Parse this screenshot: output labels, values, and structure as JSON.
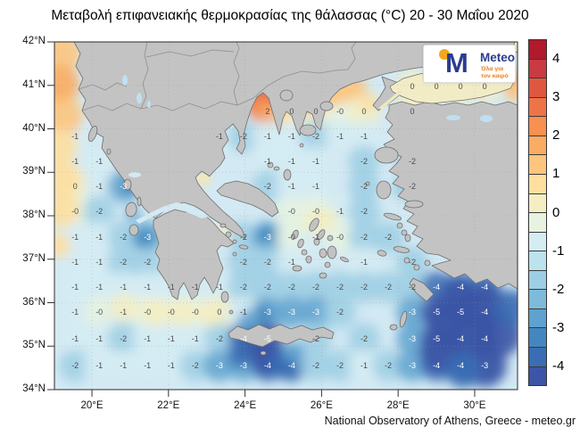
{
  "title": "Μεταβολή επιφανειακής θερμοκρασίας της θάλασσας (°C) 20 - 30 Μαΐου 2020",
  "attribution": "National Observatory of Athens, Greece - meteo.gr",
  "logo": {
    "name": "Meteo",
    "tagline": [
      "Όλα για",
      "τον καιρό"
    ],
    "brand_blue": "#2b3c8f",
    "brand_orange": "#ef7d17",
    "brand_yellow": "#f5a81c"
  },
  "axes": {
    "lat_ticks": [
      {
        "label": "42°N",
        "value": 42
      },
      {
        "label": "41°N",
        "value": 41
      },
      {
        "label": "40°N",
        "value": 40
      },
      {
        "label": "39°N",
        "value": 39
      },
      {
        "label": "38°N",
        "value": 38
      },
      {
        "label": "37°N",
        "value": 37
      },
      {
        "label": "36°N",
        "value": 36
      },
      {
        "label": "35°N",
        "value": 35
      },
      {
        "label": "34°N",
        "value": 34
      }
    ],
    "lon_ticks": [
      {
        "label": "20°E",
        "value": 20
      },
      {
        "label": "22°E",
        "value": 22
      },
      {
        "label": "24°E",
        "value": 24
      },
      {
        "label": "26°E",
        "value": 26
      },
      {
        "label": "28°E",
        "value": 28
      },
      {
        "label": "30°E",
        "value": 30
      }
    ]
  },
  "colorbar": {
    "tick_labels": [
      "4",
      "3",
      "2",
      "1",
      "0",
      "-1",
      "-2",
      "-3",
      "-4"
    ],
    "max": 4.5,
    "min": -4.5,
    "step": 0.5,
    "segment_colors": [
      "#b11a2b",
      "#c93a41",
      "#e0573f",
      "#ee7448",
      "#f79051",
      "#fbac63",
      "#fdc57e",
      "#fedf9e",
      "#f4eec2",
      "#e7f3e0",
      "#d5ecf3",
      "#bce2ee",
      "#9dcfe4",
      "#7ebada",
      "#5fa2cf",
      "#4487be",
      "#3a6db4",
      "#3c55a6"
    ]
  },
  "map_colors": {
    "land": "#c3c3c3",
    "coast": "#6e6e6e",
    "border": "#8f8f8f",
    "sea_base": "#d3e9f3",
    "lake": "#bfe0f0",
    "marmara": "#f2ecc6",
    "label_dark": "#4d4d4d",
    "label_light": "#ffffff"
  },
  "chart_data": {
    "type": "heatmap",
    "title": "Μεταβολή επιφανειακής θερμοκρασίας της θάλασσας (°C) 20 - 30 Μαΐου 2020",
    "units": "°C",
    "lon_range": [
      19.02,
      31.12
    ],
    "lat_range": [
      34,
      42
    ],
    "grid": {
      "lons": [
        19.56,
        20.19,
        20.82,
        21.45,
        22.07,
        22.7,
        23.33,
        23.96,
        24.59,
        25.22,
        25.85,
        26.48,
        27.11,
        27.74,
        28.37,
        29.0,
        29.63,
        30.26
      ],
      "lats": [
        40.97,
        40.4,
        39.83,
        39.25,
        38.68,
        38.1,
        37.51,
        36.93,
        36.36,
        35.78,
        35.17,
        34.55
      ],
      "values": [
        [
          null,
          null,
          null,
          null,
          null,
          null,
          null,
          null,
          null,
          null,
          null,
          null,
          null,
          null,
          "0",
          "0",
          "0",
          "0"
        ],
        [
          null,
          null,
          null,
          null,
          null,
          null,
          null,
          null,
          "2",
          "0",
          "0",
          "-0",
          "0",
          null,
          "0",
          null,
          null,
          null
        ],
        [
          "-1",
          null,
          null,
          null,
          null,
          null,
          "-1",
          "-2",
          "-1",
          "-1",
          "-2",
          "-1",
          "-1",
          null,
          null,
          null,
          null,
          null
        ],
        [
          "-1",
          "-1",
          null,
          null,
          null,
          null,
          null,
          null,
          "-1",
          "-1",
          "-1",
          null,
          "-2",
          null,
          "-2",
          null,
          null,
          null
        ],
        [
          "0",
          "-1",
          "-3",
          null,
          null,
          null,
          null,
          null,
          "-2",
          "-1",
          "-1",
          null,
          "-2",
          null,
          "-2",
          null,
          null,
          null
        ],
        [
          "-0",
          "-2",
          null,
          null,
          null,
          null,
          null,
          null,
          null,
          "-0",
          "-0",
          "-1",
          "-2",
          null,
          null,
          null,
          null,
          null
        ],
        [
          "-1",
          "-1",
          "-2",
          "-3",
          null,
          null,
          null,
          "-2",
          "-3",
          "-0",
          "-1",
          "-0",
          "-2",
          "-2",
          null,
          null,
          null,
          null
        ],
        [
          "-1",
          "-1",
          "-2",
          "-2",
          null,
          null,
          null,
          "-2",
          "-2",
          "-1",
          null,
          null,
          "-1",
          null,
          "-2",
          null,
          null,
          null
        ],
        [
          "-1",
          "-1",
          "-1",
          "-1",
          "-1",
          "-1",
          "-1",
          "-2",
          "-2",
          "-2",
          "-2",
          "-2",
          "-2",
          "-2",
          "-2",
          "-4",
          "-4",
          "-4"
        ],
        [
          "-1",
          "-0",
          "-1",
          "-0",
          "-0",
          "-0",
          "0",
          "-1",
          "-3",
          "-3",
          "-3",
          "-2",
          null,
          null,
          "-3",
          "-5",
          "-5",
          "-4"
        ],
        [
          "-1",
          "-1",
          "-2",
          "-1",
          "-1",
          "-1",
          "-2",
          "-4",
          "-5",
          null,
          "-2",
          null,
          "-2",
          null,
          "-3",
          "-5",
          "-4",
          "-4"
        ],
        [
          "-2",
          "-1",
          "-1",
          "-1",
          "-1",
          "-2",
          "-3",
          "-3",
          "-4",
          "-4",
          "-2",
          "-2",
          "-1",
          "-2",
          "-3",
          "-4",
          "-4",
          "-3"
        ]
      ]
    },
    "anomaly_patches": [
      [
        19.21,
        41.73,
        1,
        22
      ],
      [
        19.09,
        40.71,
        2,
        10
      ],
      [
        19.16,
        41.02,
        1.5,
        22
      ],
      [
        19.25,
        40.3,
        1,
        22
      ],
      [
        19.16,
        39.58,
        0.6,
        20
      ],
      [
        19.25,
        38.86,
        0.6,
        20
      ],
      [
        19.21,
        38.14,
        0.6,
        20
      ],
      [
        19.11,
        37.32,
        0.5,
        14
      ],
      [
        24.45,
        40.67,
        3,
        16
      ],
      [
        24.8,
        40.75,
        2.5,
        16
      ],
      [
        25.27,
        40.71,
        2,
        14
      ],
      [
        24.29,
        40.54,
        2.5,
        12
      ],
      [
        25.73,
        40.67,
        1.5,
        14
      ],
      [
        26.15,
        40.75,
        1,
        14
      ],
      [
        26.55,
        40.87,
        1.2,
        14
      ],
      [
        26.9,
        40.95,
        1,
        12
      ],
      [
        25.03,
        40.4,
        0.8,
        12
      ],
      [
        24.47,
        40.5,
        1.5,
        8
      ],
      [
        30.98,
        41.08,
        1.5,
        12
      ],
      [
        31.05,
        40.81,
        1,
        10
      ],
      [
        30.91,
        41.9,
        0.5,
        10
      ],
      [
        27.25,
        40.61,
        0.5,
        10
      ],
      [
        28.25,
        39.72,
        0.3,
        12
      ],
      [
        25.85,
        37.84,
        0.4,
        14
      ],
      [
        26.15,
        37.94,
        0.3,
        12
      ],
      [
        23.4,
        37.59,
        0.4,
        10
      ],
      [
        22.89,
        38.86,
        0.5,
        8
      ],
      [
        20.84,
        35.89,
        0.3,
        16
      ],
      [
        21.65,
        35.78,
        0.4,
        16
      ],
      [
        22.35,
        35.78,
        0.4,
        16
      ],
      [
        23.05,
        35.74,
        0.3,
        14
      ],
      [
        29.58,
        36.09,
        -4.2,
        22
      ],
      [
        30.28,
        35.89,
        -4.6,
        26
      ],
      [
        30.63,
        35.27,
        -4.6,
        26
      ],
      [
        29.93,
        35.17,
        -5,
        28
      ],
      [
        29.23,
        35.58,
        -4.6,
        22
      ],
      [
        29.11,
        34.86,
        -4.2,
        24
      ],
      [
        30.28,
        34.55,
        -4.2,
        24
      ],
      [
        30.98,
        35.89,
        -4,
        20
      ],
      [
        29.7,
        34.45,
        -3.8,
        20
      ],
      [
        24.22,
        35.07,
        -4.2,
        16
      ],
      [
        24.57,
        34.76,
        -4.6,
        20
      ],
      [
        24.99,
        34.59,
        -4,
        16
      ],
      [
        23.87,
        34.8,
        -3.6,
        14
      ],
      [
        25.27,
        34.86,
        -3,
        12
      ],
      [
        21.02,
        38.66,
        -3.2,
        10
      ],
      [
        21.07,
        38.04,
        -2.6,
        8
      ],
      [
        21.37,
        37.47,
        -3.2,
        10
      ],
      [
        24.57,
        37.57,
        -3.4,
        10
      ],
      [
        24.47,
        35.74,
        -3.2,
        10
      ],
      [
        28.18,
        39.17,
        -2,
        10
      ],
      [
        28.06,
        38.62,
        -2,
        10
      ],
      [
        24.1,
        35.58,
        -2.8,
        12
      ]
    ]
  }
}
